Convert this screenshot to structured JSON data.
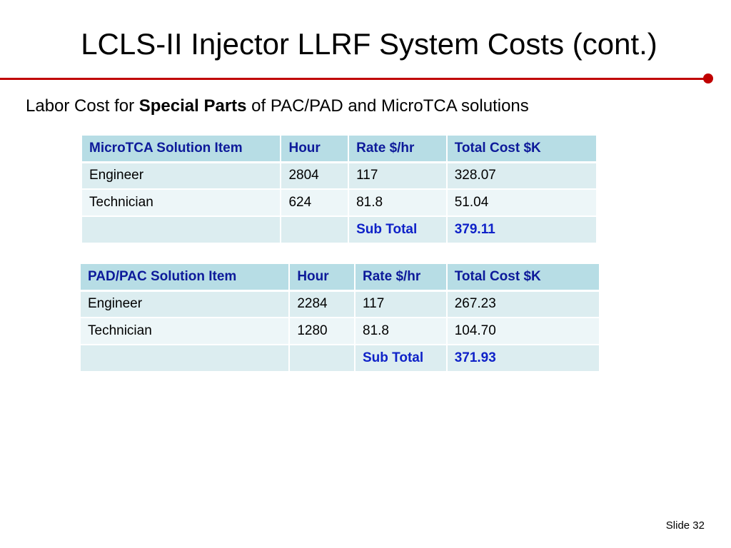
{
  "title": "LCLS-II Injector LLRF System Costs (cont.)",
  "subtitle": {
    "prefix": "Labor Cost for ",
    "bold": "Special Parts",
    "suffix": " of PAC/PAD and MicroTCA solutions"
  },
  "tables": [
    {
      "headers": [
        "MicroTCA Solution Item",
        "Hour",
        "Rate $/hr",
        "Total Cost $K"
      ],
      "rows": [
        [
          "Engineer",
          "2804",
          "117",
          "328.07"
        ],
        [
          "Technician",
          "624",
          "81.8",
          "51.04"
        ],
        [
          "",
          "",
          "Sub Total",
          "379.11"
        ]
      ]
    },
    {
      "headers": [
        "PAD/PAC Solution Item",
        "Hour",
        "Rate $/hr",
        "Total Cost $K"
      ],
      "rows": [
        [
          "Engineer",
          "2284",
          "117",
          "267.23"
        ],
        [
          "Technician",
          "1280",
          "81.8",
          "104.70"
        ],
        [
          "",
          "",
          "Sub Total",
          "371.93"
        ]
      ]
    }
  ],
  "footer": "Slide 32",
  "colors": {
    "accent_rule": "#c00000",
    "header_fill": "#b7dde5",
    "header_text": "#0d1a9a",
    "subtotal_text": "#0f22c8"
  }
}
